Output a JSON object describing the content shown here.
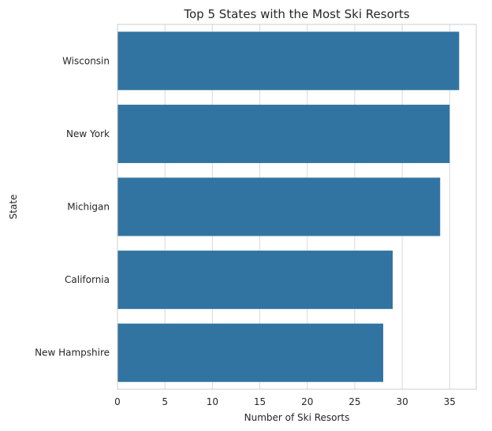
{
  "chart_data": {
    "type": "bar",
    "orientation": "horizontal",
    "title": "Top 5 States with the Most Ski Resorts",
    "xlabel": "Number of Ski Resorts",
    "ylabel": "State",
    "categories": [
      "Wisconsin",
      "New York",
      "Michigan",
      "California",
      "New Hampshire"
    ],
    "values": [
      36,
      35,
      34,
      29,
      28
    ],
    "xlim": [
      0,
      37.8
    ],
    "xticks": [
      0,
      5,
      10,
      15,
      20,
      25,
      30,
      35
    ],
    "grid": "vertical",
    "legend": "none",
    "bar_color": "#3274a1"
  }
}
